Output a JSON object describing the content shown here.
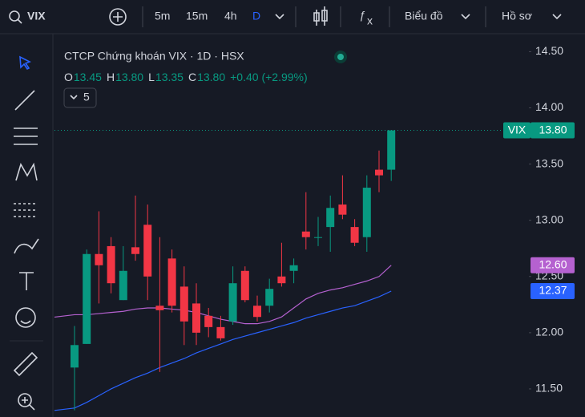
{
  "toolbar": {
    "symbol": "VIX",
    "intervals": [
      "5m",
      "15m",
      "4h",
      "D"
    ],
    "chart_menu": "Biểu đồ",
    "profile_menu": "Hồ sơ"
  },
  "chart_data": {
    "type": "candlestick",
    "title": "CTCP Chứng khoán VIX · 1D · HSX",
    "ohlc_legend": [
      {
        "key": "O",
        "value": "13.45"
      },
      {
        "key": "H",
        "value": "13.80"
      },
      {
        "key": "L",
        "value": "13.35"
      },
      {
        "key": "C",
        "value": "13.80"
      }
    ],
    "change": "+0.40 (+2.99%)",
    "indicator_count": "5",
    "last_price": {
      "symbol": "VIX",
      "value": 13.8,
      "label": "13.80"
    },
    "up_color": "#089981",
    "down_color": "#f23645",
    "open": [
      11.69,
      11.9,
      12.7,
      12.77,
      12.29,
      12.76,
      12.96,
      12.24,
      12.66,
      12.41,
      12.26,
      12.15,
      12.05,
      12.1,
      12.55,
      12.24,
      12.24,
      12.5,
      12.55,
      12.9,
      12.85,
      12.94,
      13.14,
      12.94,
      12.85,
      13.45,
      13.45
    ],
    "high": [
      12.06,
      12.74,
      13.08,
      12.85,
      12.77,
      13.22,
      13.14,
      12.85,
      12.74,
      12.59,
      12.44,
      12.22,
      12.15,
      12.59,
      12.59,
      12.33,
      12.48,
      12.8,
      12.66,
      13.25,
      13.03,
      13.22,
      13.4,
      13.01,
      13.4,
      13.62,
      13.8
    ],
    "low": [
      11.31,
      11.9,
      12.26,
      12.35,
      12.29,
      12.64,
      12.29,
      11.65,
      12.18,
      11.89,
      11.89,
      11.96,
      11.93,
      12.07,
      12.27,
      12.1,
      12.18,
      12.41,
      12.44,
      12.74,
      12.77,
      12.72,
      13.01,
      12.77,
      12.72,
      13.25,
      13.35
    ],
    "close": [
      11.89,
      12.7,
      12.6,
      12.44,
      12.55,
      12.7,
      12.5,
      12.2,
      12.24,
      12.1,
      12.0,
      12.05,
      11.95,
      12.44,
      12.29,
      12.14,
      12.39,
      12.44,
      12.6,
      12.85,
      12.85,
      13.11,
      13.05,
      12.8,
      13.29,
      13.4,
      13.8
    ],
    "series": [
      {
        "color": "#b561d0",
        "label_color": "#b561d0",
        "last_label": "12.60",
        "values": [
          12.16,
          12.16,
          12.17,
          12.18,
          12.19,
          12.21,
          12.22,
          12.22,
          12.21,
          12.2,
          12.18,
          12.15,
          12.12,
          12.1,
          12.08,
          12.08,
          12.1,
          12.14,
          12.22,
          12.3,
          12.35,
          12.38,
          12.4,
          12.43,
          12.46,
          12.5,
          12.6
        ]
      },
      {
        "color": "#2962ff",
        "label_color": "#2962ff",
        "last_label": "12.37",
        "values": [
          11.33,
          11.38,
          11.44,
          11.5,
          11.55,
          11.6,
          11.64,
          11.69,
          11.73,
          11.77,
          11.82,
          11.86,
          11.9,
          11.94,
          11.97,
          12.0,
          12.03,
          12.06,
          12.09,
          12.13,
          12.16,
          12.19,
          12.22,
          12.24,
          12.28,
          12.32,
          12.37
        ]
      }
    ],
    "ylim": [
      11.25,
      14.66
    ],
    "yticks": [
      {
        "value": 11.5,
        "label": "11.50"
      },
      {
        "value": 12,
        "label": "12.00"
      },
      {
        "value": 12.5,
        "label": "12.50"
      },
      {
        "value": 13,
        "label": "13.00"
      },
      {
        "value": 13.5,
        "label": "13.50"
      },
      {
        "value": 14,
        "label": "14.00"
      },
      {
        "value": 14.5,
        "label": "14.50"
      }
    ]
  }
}
